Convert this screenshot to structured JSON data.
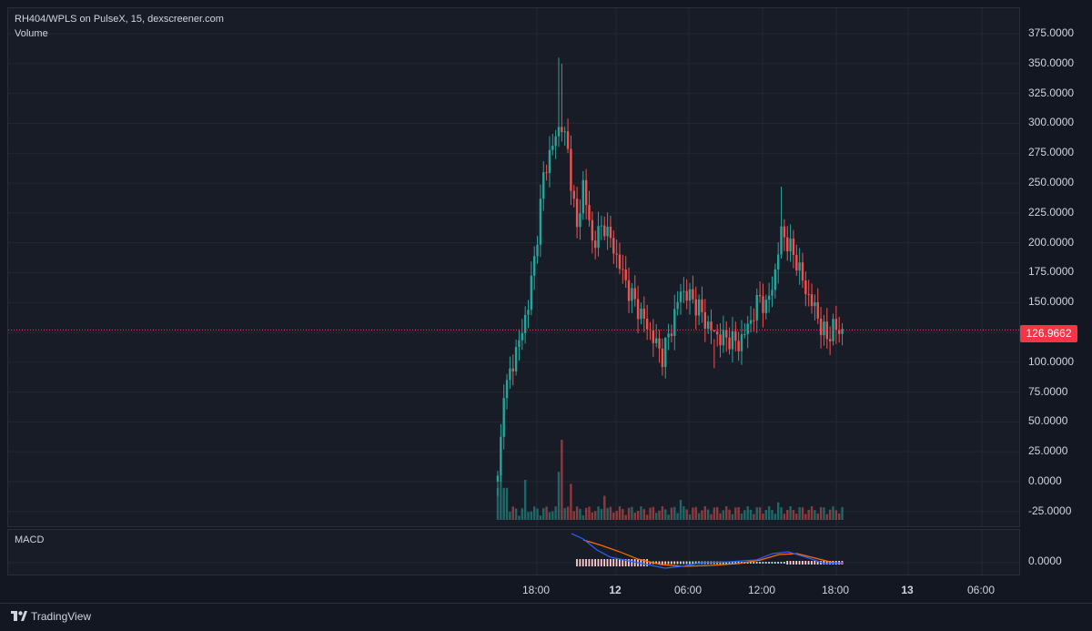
{
  "header": {
    "symbol_line": "RH404/WPLS on PulseX, 15, dexscreener.com",
    "volume_label": "Volume"
  },
  "macd": {
    "label": "MACD",
    "zero_label": "0.0000"
  },
  "last_price": "126.9662",
  "footer": {
    "brand": "TradingView"
  },
  "colors": {
    "background": "#131722",
    "pane": "#181c27",
    "up": "#26a69a",
    "down": "#ef5350",
    "last_price": "#f23645",
    "macd_line": "#2962ff",
    "signal_line": "#ff6d00"
  },
  "icons": {
    "logo": "tradingview-logo-icon"
  },
  "chart_data": {
    "type": "candlestick",
    "y_ticks": [
      "375.0000",
      "350.0000",
      "325.0000",
      "300.0000",
      "275.0000",
      "250.0000",
      "225.0000",
      "200.0000",
      "175.0000",
      "150.0000",
      "125.0000",
      "100.0000",
      "75.0000",
      "50.0000",
      "25.0000",
      "0.0000",
      "-25.0000"
    ],
    "x_ticks": [
      "18:00",
      "12",
      "06:00",
      "12:00",
      "18:00",
      "13",
      "06:00"
    ],
    "ylim": [
      -25,
      375
    ],
    "last_price": 126.9662,
    "grid": true,
    "keypoints": [
      {
        "t": 0,
        "close": 5
      },
      {
        "t": 2,
        "close": 70
      },
      {
        "t": 6,
        "close": 110
      },
      {
        "t": 8,
        "close": 125
      },
      {
        "t": 10,
        "close": 150
      },
      {
        "t": 12,
        "close": 185
      },
      {
        "t": 15,
        "close": 255
      },
      {
        "t": 17,
        "close": 275
      },
      {
        "t": 20,
        "close": 295
      },
      {
        "t": 21,
        "close": 300
      },
      {
        "t": 23,
        "close": 275
      },
      {
        "t": 26,
        "close": 210
      },
      {
        "t": 28,
        "close": 250
      },
      {
        "t": 31,
        "close": 200
      },
      {
        "t": 35,
        "close": 215
      },
      {
        "t": 38,
        "close": 195
      },
      {
        "t": 43,
        "close": 160
      },
      {
        "t": 47,
        "close": 140
      },
      {
        "t": 50,
        "close": 125
      },
      {
        "t": 54,
        "close": 105
      },
      {
        "t": 57,
        "close": 130
      },
      {
        "t": 60,
        "close": 160
      },
      {
        "t": 63,
        "close": 155
      },
      {
        "t": 66,
        "close": 145
      },
      {
        "t": 69,
        "close": 130
      },
      {
        "t": 73,
        "close": 120
      },
      {
        "t": 76,
        "close": 120
      },
      {
        "t": 79,
        "close": 115
      },
      {
        "t": 83,
        "close": 135
      },
      {
        "t": 86,
        "close": 155
      },
      {
        "t": 88,
        "close": 145
      },
      {
        "t": 91,
        "close": 175
      },
      {
        "t": 93,
        "close": 210
      },
      {
        "t": 95,
        "close": 200
      },
      {
        "t": 98,
        "close": 185
      },
      {
        "t": 101,
        "close": 160
      },
      {
        "t": 104,
        "close": 145
      },
      {
        "t": 106,
        "close": 130
      },
      {
        "t": 108,
        "close": 120
      },
      {
        "t": 110,
        "close": 130
      },
      {
        "t": 112,
        "close": 125
      },
      {
        "t": 113,
        "close": 127
      }
    ],
    "spikes": [
      {
        "t": 20,
        "high": 355
      },
      {
        "t": 21,
        "high": 350
      },
      {
        "t": 28,
        "high": 260
      },
      {
        "t": 41,
        "high": 190
      },
      {
        "t": 55,
        "high": 100
      },
      {
        "t": 71,
        "high": 95
      },
      {
        "t": 93,
        "high": 247
      }
    ],
    "volume_spikes": [
      {
        "t": 1,
        "v": 0.55
      },
      {
        "t": 9,
        "v": 0.5
      },
      {
        "t": 20,
        "v": 0.6
      },
      {
        "t": 21,
        "v": 1.0
      },
      {
        "t": 24,
        "v": 0.45
      },
      {
        "t": 35,
        "v": 0.3
      },
      {
        "t": 60,
        "v": 0.25
      },
      {
        "t": 92,
        "v": 0.22
      }
    ]
  }
}
